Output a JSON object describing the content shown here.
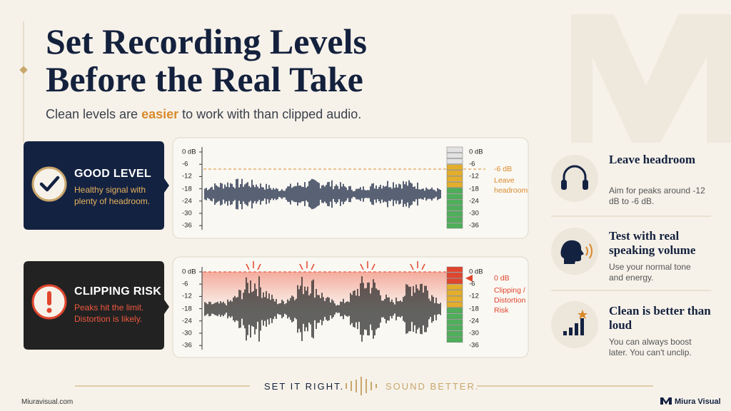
{
  "header": {
    "title_lines": [
      "Set Recording Levels",
      "Before the Real Take"
    ],
    "subtitle": {
      "before": "Clean levels are ",
      "emphasis": "easier",
      "after": " to work with than clipped audio."
    }
  },
  "examples": [
    {
      "label": "GOOD LEVEL",
      "description": "Healthy signal with plenty of headroom.",
      "scale": [
        "0 dB",
        "-6",
        "-12",
        "-18",
        "-24",
        "-30",
        "-36"
      ],
      "meter_scale": [
        "0 dB",
        "-6",
        "-12",
        "-18",
        "-24",
        "-30",
        "-36"
      ],
      "marker": "-6 dB",
      "note": "Leave headroom"
    },
    {
      "label": "CLIPPING RISK",
      "description": "Peaks hit the limit. Distortion is likely.",
      "scale": [
        "0 dB",
        "-6",
        "-12",
        "-18",
        "-24",
        "-30",
        "-36"
      ],
      "meter_scale": [
        "0 dB",
        "-6",
        "-12",
        "-18",
        "-24",
        "-30",
        "-36"
      ],
      "marker": "0 dB",
      "note": "Clipping / Distortion Risk"
    }
  ],
  "tips": [
    {
      "title": "Leave headroom",
      "text": "Aim for peaks around -12 dB to -6 dB."
    },
    {
      "title": "Test with real speaking volume",
      "text": "Use your normal tone and energy."
    },
    {
      "title": "Clean is better than loud",
      "text": "You can always boost later. You can't unclip."
    }
  ],
  "footer": {
    "left_slogan": "SET IT RIGHT.",
    "right_slogan": "SOUND BETTER.",
    "website": "Miuravisual.com",
    "brand": "Miura Visual"
  }
}
